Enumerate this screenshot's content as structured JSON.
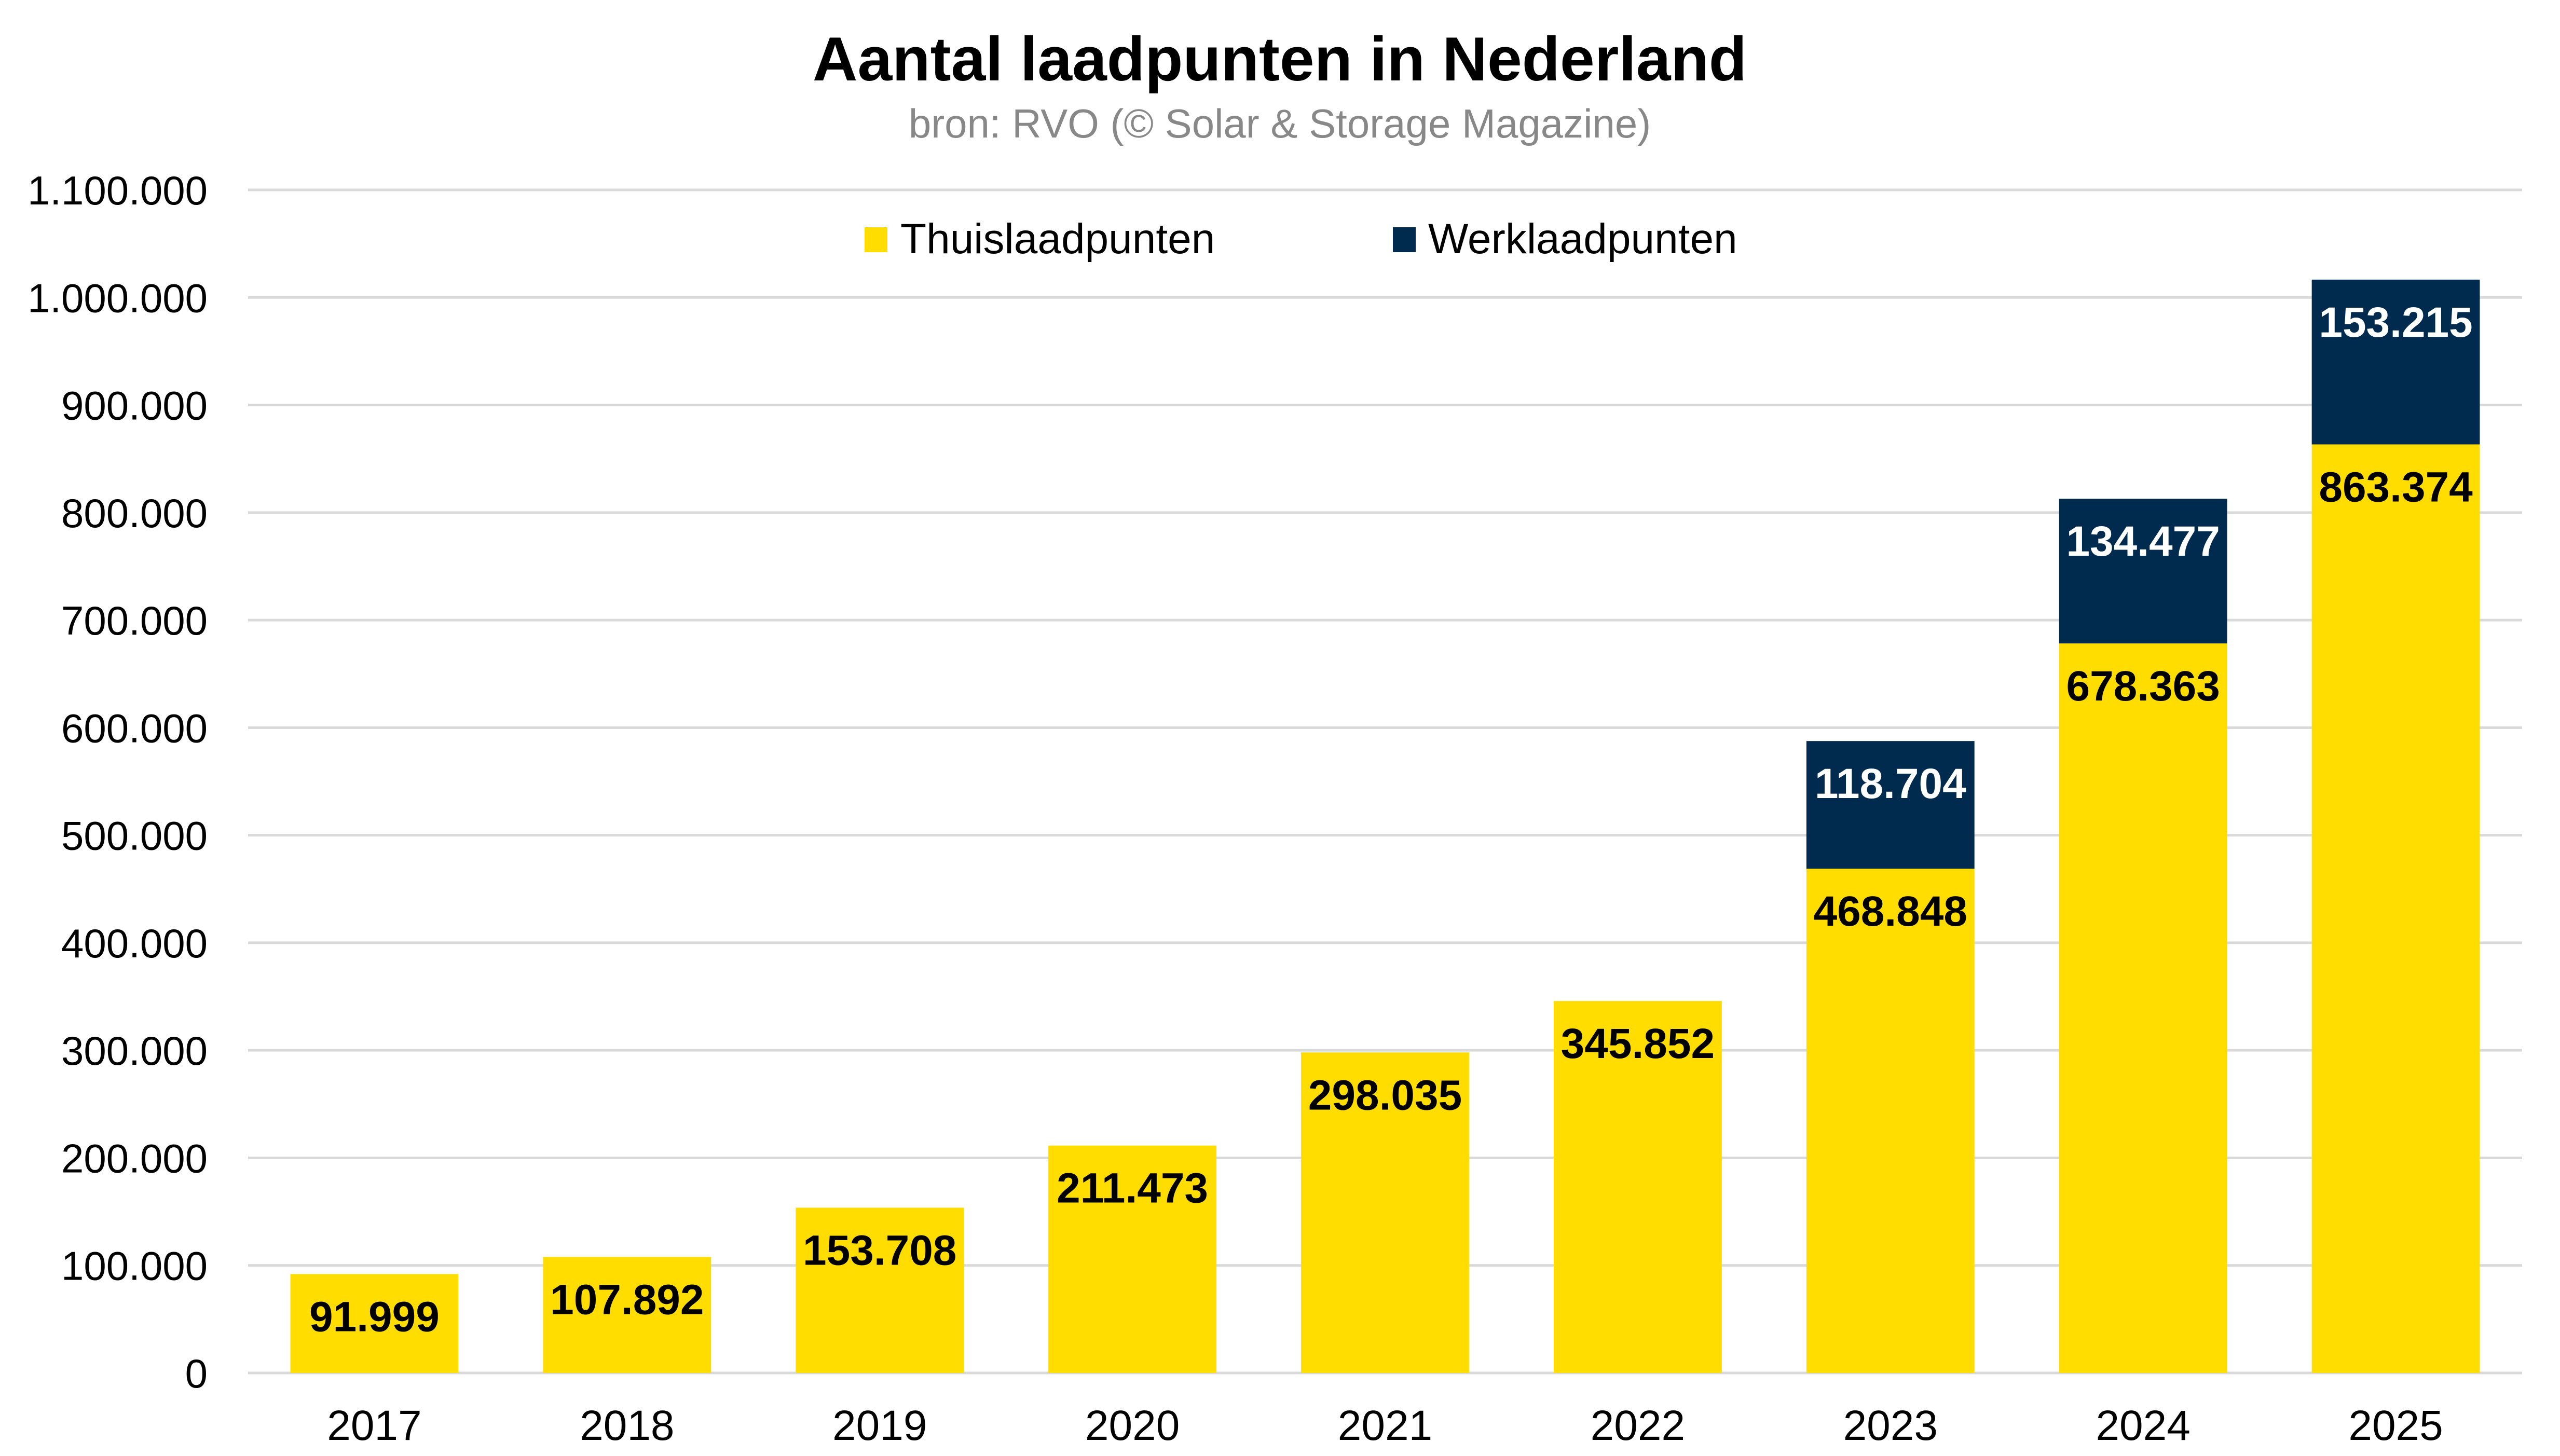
{
  "chart_data": {
    "type": "bar",
    "stacked": true,
    "title": "Aantal laadpunten in Nederland",
    "subtitle": "bron: RVO (© Solar & Storage Magazine)",
    "xlabel": "",
    "ylabel": "",
    "categories": [
      "2017",
      "2018",
      "2019",
      "2020",
      "2021",
      "2022",
      "2023",
      "2024",
      "2025"
    ],
    "series": [
      {
        "name": "Thuislaadpunten",
        "color": "#FFDD00",
        "label_color": "#000000",
        "values": [
          91999,
          107892,
          153708,
          211473,
          298035,
          345852,
          468848,
          678363,
          863374
        ],
        "labels": [
          "91.999",
          "107.892",
          "153.708",
          "211.473",
          "298.035",
          "345.852",
          "468.848",
          "678.363",
          "863.374"
        ]
      },
      {
        "name": "Werklaadpunten",
        "color": "#002B4E",
        "label_color": "#ffffff",
        "values": [
          null,
          null,
          null,
          null,
          null,
          null,
          118704,
          134477,
          153215
        ],
        "labels": [
          null,
          null,
          null,
          null,
          null,
          null,
          "118.704",
          "134.477",
          "153.215"
        ]
      }
    ],
    "ylim": [
      0,
      1100000
    ],
    "yticks": [
      0,
      100000,
      200000,
      300000,
      400000,
      500000,
      600000,
      700000,
      800000,
      900000,
      1000000,
      1100000
    ],
    "ytick_labels": [
      "0",
      "100.000",
      "200.000",
      "300.000",
      "400.000",
      "500.000",
      "600.000",
      "700.000",
      "800.000",
      "900.000",
      "1.000.000",
      "1.100.000"
    ],
    "grid": true,
    "legend": {
      "position": "top-center",
      "entries": [
        "Thuislaadpunten",
        "Werklaadpunten"
      ]
    }
  }
}
